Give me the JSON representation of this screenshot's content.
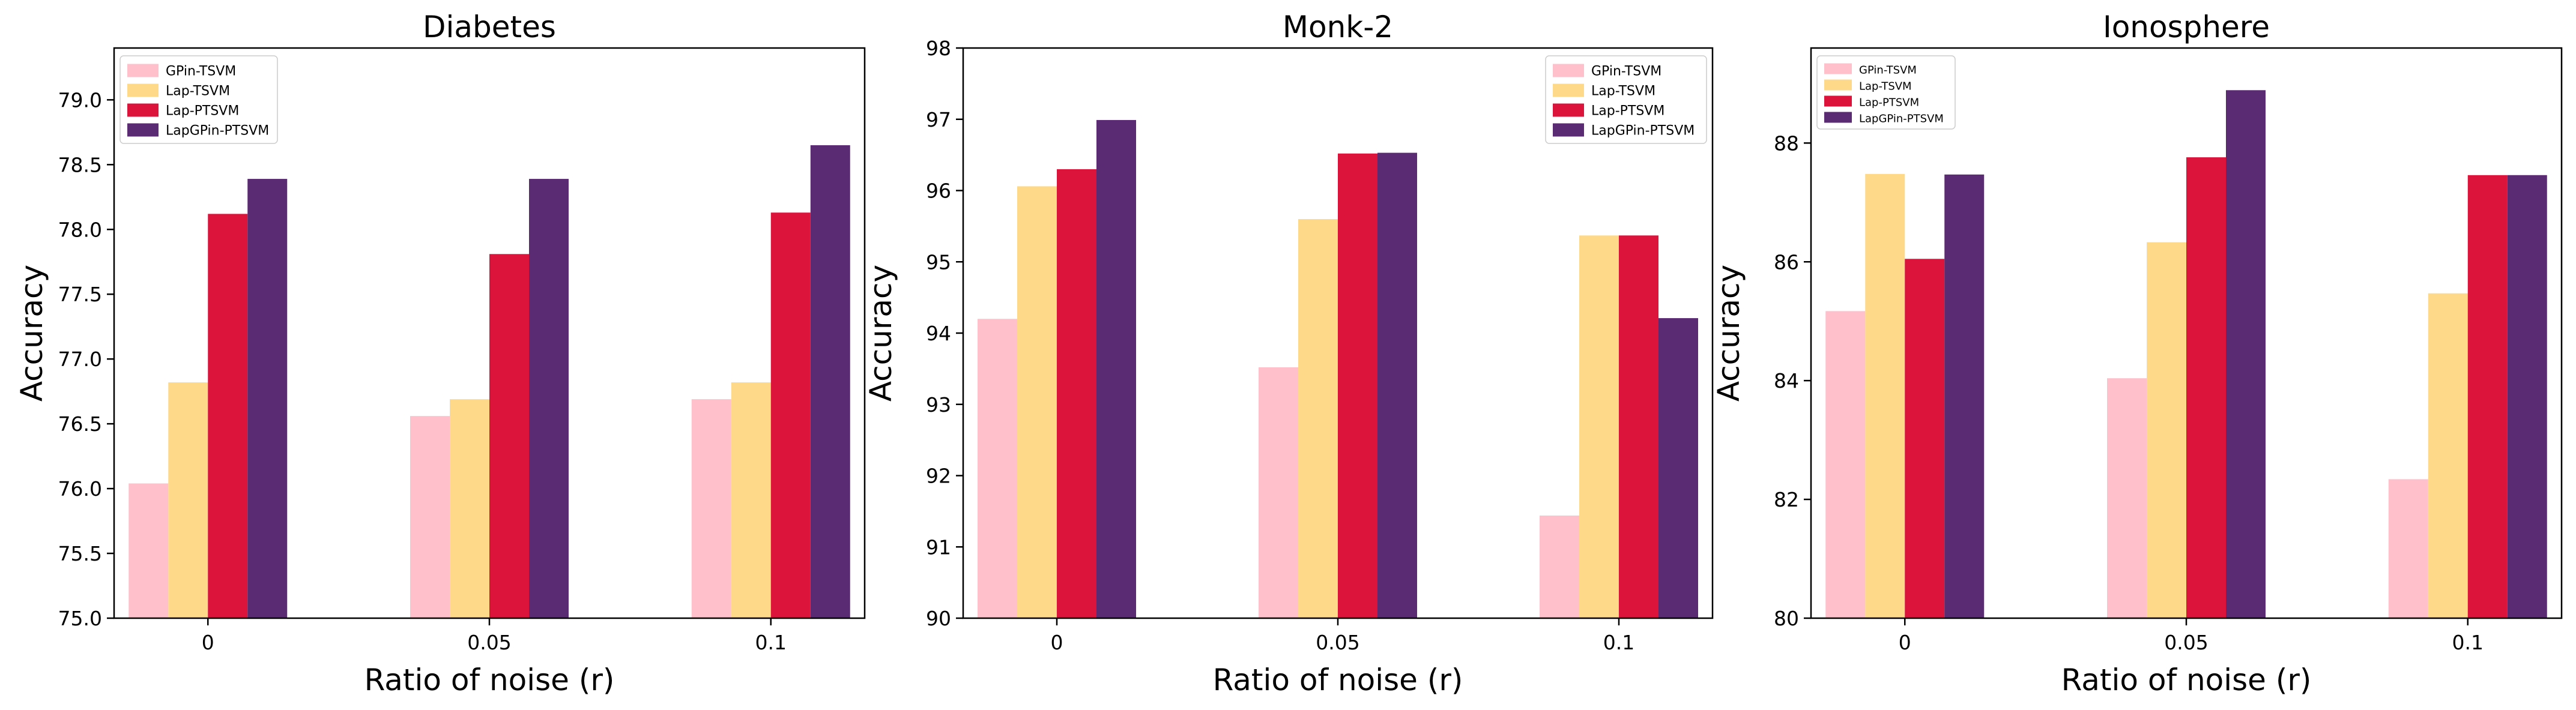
{
  "series_colors": {
    "GPin-TSVM": "#ffc0cb",
    "Lap-TSVM": "#ffd98a",
    "Lap-PTSVM": "#dc143c",
    "LapGPin-PTSVM": "#5a2a73"
  },
  "chart_data": [
    {
      "type": "bar",
      "title": "Diabetes",
      "xlabel": "Ratio of noise (r)",
      "ylabel": "Accuracy",
      "categories": [
        "0",
        "0.05",
        "0.1"
      ],
      "ylim": [
        75.0,
        79.4
      ],
      "yticks": [
        "75.0",
        "75.5",
        "76.0",
        "76.5",
        "77.0",
        "77.5",
        "78.0",
        "78.5",
        "79.0"
      ],
      "legend_position": "top-left",
      "series": [
        {
          "name": "GPin-TSVM",
          "values": [
            76.04,
            76.56,
            76.69
          ]
        },
        {
          "name": "Lap-TSVM",
          "values": [
            76.82,
            76.69,
            76.82
          ]
        },
        {
          "name": "Lap-PTSVM",
          "values": [
            78.12,
            77.81,
            78.13
          ]
        },
        {
          "name": "LapGPin-PTSVM",
          "values": [
            78.39,
            78.39,
            78.65
          ]
        }
      ]
    },
    {
      "type": "bar",
      "title": "Monk-2",
      "xlabel": "Ratio of noise (r)",
      "ylabel": "Accuracy",
      "categories": [
        "0",
        "0.05",
        "0.1"
      ],
      "ylim": [
        90,
        98
      ],
      "yticks": [
        "90",
        "91",
        "92",
        "93",
        "94",
        "95",
        "96",
        "97",
        "98"
      ],
      "legend_position": "top-right",
      "series": [
        {
          "name": "GPin-TSVM",
          "values": [
            94.2,
            93.52,
            91.44
          ]
        },
        {
          "name": "Lap-TSVM",
          "values": [
            96.06,
            95.6,
            95.37
          ]
        },
        {
          "name": "Lap-PTSVM",
          "values": [
            96.3,
            96.52,
            95.37
          ]
        },
        {
          "name": "LapGPin-PTSVM",
          "values": [
            96.99,
            96.53,
            94.21
          ]
        }
      ]
    },
    {
      "type": "bar",
      "title": "Ionosphere",
      "xlabel": "Ratio of noise (r)",
      "ylabel": "Accuracy",
      "categories": [
        "0",
        "0.05",
        "0.1"
      ],
      "ylim": [
        80,
        89.6
      ],
      "yticks": [
        "80",
        "82",
        "84",
        "86",
        "88"
      ],
      "legend_position": "top-left",
      "series": [
        {
          "name": "GPin-TSVM",
          "values": [
            85.17,
            84.04,
            82.34
          ]
        },
        {
          "name": "Lap-TSVM",
          "values": [
            87.48,
            86.33,
            85.47
          ]
        },
        {
          "name": "Lap-PTSVM",
          "values": [
            86.05,
            87.76,
            87.46
          ]
        },
        {
          "name": "LapGPin-PTSVM",
          "values": [
            87.47,
            88.89,
            87.46
          ]
        }
      ]
    }
  ]
}
